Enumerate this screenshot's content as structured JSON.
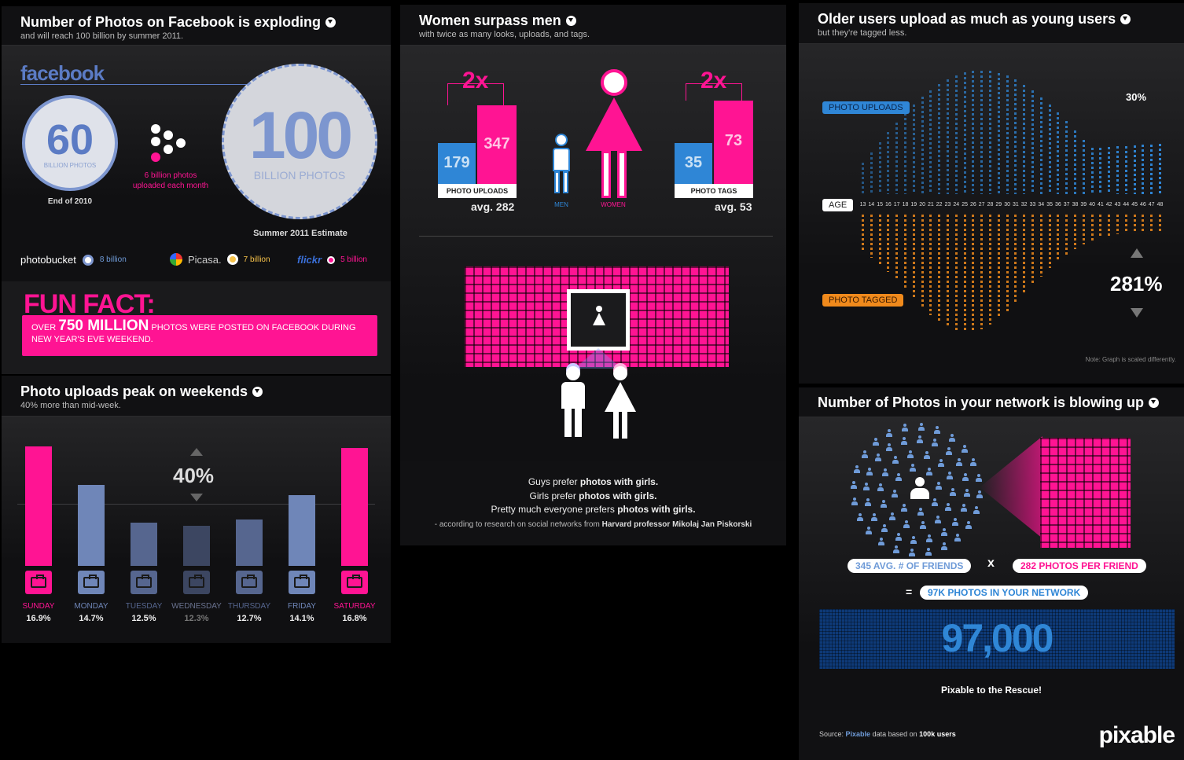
{
  "panel1": {
    "title": "Number of Photos on Facebook is exploding",
    "subtitle": "and will reach 100 billion by summer 2011.",
    "brand": "facebook",
    "end2010_value": "60",
    "end2010_unit": "BILLION PHOTOS",
    "end2010_label": "End of 2010",
    "monthly_line1": "6 billion photos",
    "monthly_line2": "uploaded each month",
    "estimate_value": "100",
    "estimate_unit": "BILLION PHOTOS",
    "estimate_label": "Summer 2011 Estimate",
    "competitors": [
      {
        "name": "photobucket",
        "value": "8 billion"
      },
      {
        "name": "Picasa.",
        "value": "7 billion"
      },
      {
        "name": "flickr",
        "value": "5 billion"
      }
    ]
  },
  "funfact": {
    "heading": "FUN FACT:",
    "over": "OVER",
    "highlight": "750 MILLION",
    "rest": "PHOTOS WERE POSTED ON FACEBOOK DURING NEW YEAR'S EVE WEEKEND."
  },
  "panel_weekend": {
    "title": "Photo uploads peak on weekends",
    "subtitle": "40% more than mid-week.",
    "callout": "40%",
    "days": [
      {
        "day": "SUNDAY",
        "pct": "16.9%",
        "value": 16.9,
        "color": "#ff1493"
      },
      {
        "day": "MONDAY",
        "pct": "14.7%",
        "value": 14.7,
        "color": "#6f86b8"
      },
      {
        "day": "TUESDAY",
        "pct": "12.5%",
        "value": 12.5,
        "color": "#56668f"
      },
      {
        "day": "WEDNESDAY",
        "pct": "12.3%",
        "value": 12.3,
        "color": "#3c4661"
      },
      {
        "day": "THURSDAY",
        "pct": "12.7%",
        "value": 12.7,
        "color": "#56668f"
      },
      {
        "day": "FRIDAY",
        "pct": "14.1%",
        "value": 14.1,
        "color": "#6f86b8"
      },
      {
        "day": "SATURDAY",
        "pct": "16.8%",
        "value": 16.8,
        "color": "#ff1493"
      }
    ]
  },
  "panel2": {
    "title": "Women surpass men",
    "subtitle": "with twice as many looks, uploads, and tags.",
    "multiplier": "2x",
    "uploads": {
      "men": "179",
      "women": "347",
      "label": "PHOTO UPLOADS",
      "avg": "avg. 282"
    },
    "tags": {
      "men": "35",
      "women": "73",
      "label": "PHOTO TAGS",
      "avg": "avg. 53"
    },
    "men_label": "MEN",
    "women_label": "WOMEN",
    "quote_line1_a": "Guys prefer",
    "quote_line1_b": "photos with girls.",
    "quote_line2_a": "Girls prefer",
    "quote_line2_b": "photos with girls.",
    "quote_line3_a": "Pretty much everyone prefers",
    "quote_line3_b": "photos with girls.",
    "source_a": "- according to research on social networks from",
    "source_b": "Harvard professor Mikolaj Jan Piskorski"
  },
  "panel3": {
    "title": "Older users upload as much as young users",
    "subtitle": "but they're tagged less.",
    "uploads_label": "PHOTO UPLOADS",
    "tagged_label": "PHOTO TAGGED",
    "age_label": "AGE",
    "ages": [
      "13",
      "14",
      "15",
      "16",
      "17",
      "18",
      "19",
      "20",
      "21",
      "22",
      "23",
      "24",
      "25",
      "26",
      "27",
      "28",
      "29",
      "30",
      "31",
      "32",
      "33",
      "34",
      "35",
      "36",
      "37",
      "38",
      "39",
      "40",
      "41",
      "42",
      "43",
      "44",
      "45",
      "46",
      "47",
      "48"
    ],
    "upload_pct": "30%",
    "tagged_pct": "281%",
    "note": "Note: Graph is scaled differently.",
    "colors": {
      "uploads": "#2f86d6",
      "tagged": "#f08a1c"
    }
  },
  "panel4": {
    "title": "Number of Photos in your network is blowing up",
    "friends": "345 AVG. # OF FRIENDS",
    "times": "x",
    "per_friend": "282 PHOTOS PER FRIEND",
    "equals": "=",
    "network": "97K PHOTOS IN YOUR NETWORK",
    "big_number": "97,000",
    "tagline": "Pixable to the Rescue!",
    "source_label": "Source:",
    "source_brand": "Pixable",
    "source_rest": "data based on",
    "source_users": "100k users",
    "logo": "pixable"
  }
}
